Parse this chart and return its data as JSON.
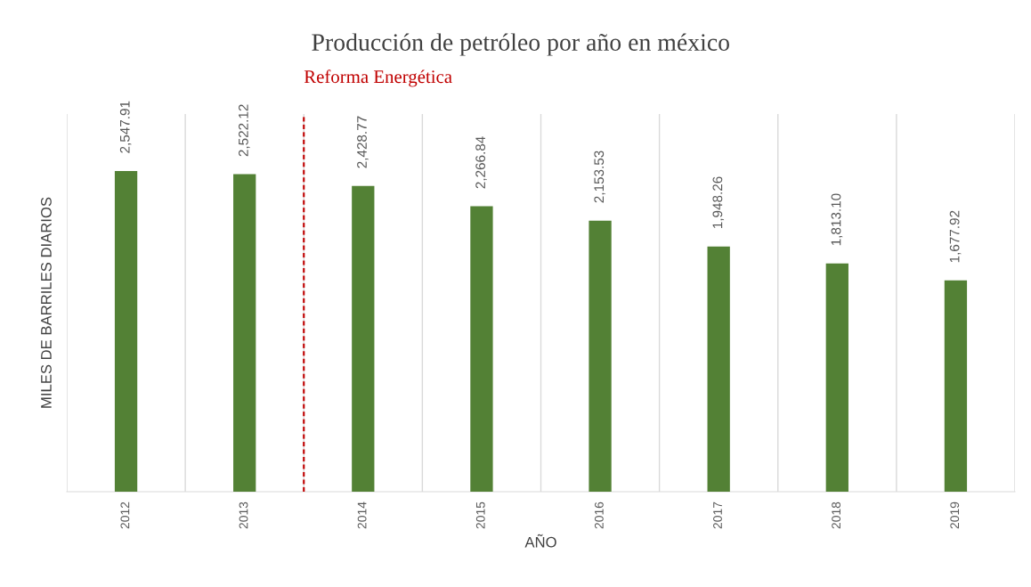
{
  "chart_data": {
    "type": "bar",
    "title": "Producción de petróleo por año en méxico",
    "xlabel": "AÑO",
    "ylabel": "MILES DE BARRILES DIARIOS",
    "categories": [
      "2012",
      "2013",
      "2014",
      "2015",
      "2016",
      "2017",
      "2018",
      "2019"
    ],
    "values": [
      2547.91,
      2522.12,
      2428.77,
      2266.84,
      2153.53,
      1948.26,
      1813.1,
      1677.92
    ],
    "value_labels": [
      "2,547.91",
      "2,522.12",
      "2,428.77",
      "2,266.84",
      "2,153.53",
      "1,948.26",
      "1,813.10",
      "1,677.92"
    ],
    "color": "#538135",
    "ylim": [
      0,
      3000
    ],
    "tick_labels": "x",
    "grid": "x",
    "annotations": [
      "Reforma Energética"
    ]
  }
}
